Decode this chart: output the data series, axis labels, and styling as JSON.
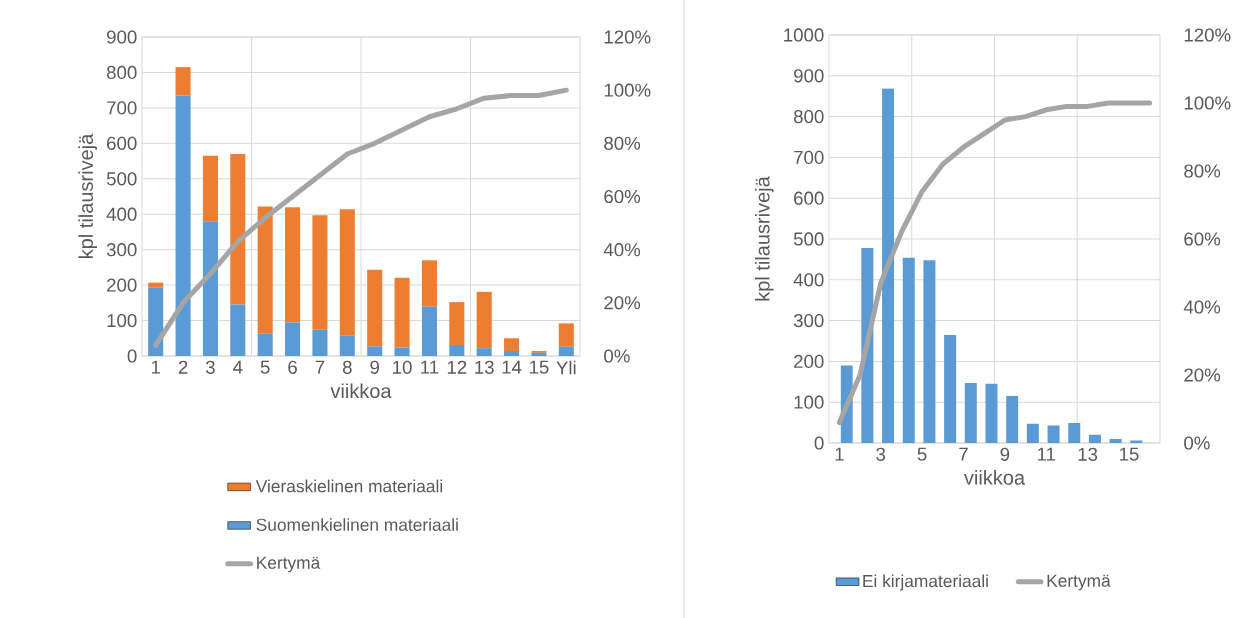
{
  "chart_data": [
    {
      "type": "bar",
      "stacked": true,
      "grid": true,
      "legend": "bottom",
      "categories": [
        "1",
        "2",
        "3",
        "4",
        "5",
        "6",
        "7",
        "8",
        "9",
        "10",
        "11",
        "12",
        "13",
        "14",
        "15",
        "Yli"
      ],
      "xlabel": "viikkoa",
      "ylabel": "kpl tilausrivejä",
      "ylim": [
        0,
        900
      ],
      "yticks": [
        0,
        100,
        200,
        300,
        400,
        500,
        600,
        700,
        800,
        900
      ],
      "y2lim": [
        0,
        120
      ],
      "y2ticks": [
        {
          "value": 0,
          "label": "0%"
        },
        {
          "value": 20,
          "label": "20%"
        },
        {
          "value": 40,
          "label": "40%"
        },
        {
          "value": 60,
          "label": "60%"
        },
        {
          "value": 80,
          "label": "80%"
        },
        {
          "value": 100,
          "label": "100%"
        },
        {
          "value": 120,
          "label": "120%"
        }
      ],
      "series": [
        {
          "name": "Suomenkielinen materiaali",
          "color": "#5b9bd5",
          "values": [
            193,
            735,
            380,
            145,
            63,
            95,
            74,
            58,
            27,
            24,
            139,
            31,
            22,
            14,
            9,
            26
          ]
        },
        {
          "name": "Vieraskielinen materiaali",
          "color": "#ed7d31",
          "values": [
            14,
            80,
            185,
            425,
            359,
            325,
            323,
            356,
            216,
            197,
            131,
            121,
            159,
            36,
            5,
            66
          ]
        },
        {
          "name": "Kertymä",
          "type": "line",
          "axis": "y2",
          "color": "#a5a5a5",
          "values": [
            4,
            20,
            31,
            43,
            52,
            60,
            68,
            76,
            80,
            85,
            90,
            93,
            97,
            98,
            98,
            100
          ]
        }
      ]
    },
    {
      "type": "bar",
      "grid": true,
      "legend": "bottom",
      "categories": [
        "1",
        null,
        "3",
        null,
        "5",
        null,
        "7",
        null,
        "9",
        null,
        "11",
        null,
        "13",
        null,
        "15",
        null
      ],
      "xlabel": "viikkoa",
      "ylabel": "kpl tilausrivejä",
      "ylim": [
        0,
        1000
      ],
      "yticks": [
        0,
        100,
        200,
        300,
        400,
        500,
        600,
        700,
        800,
        900,
        1000
      ],
      "y2lim": [
        0,
        120
      ],
      "y2ticks": [
        {
          "value": 0,
          "label": "0%"
        },
        {
          "value": 20,
          "label": "20%"
        },
        {
          "value": 40,
          "label": "40%"
        },
        {
          "value": 60,
          "label": "60%"
        },
        {
          "value": 80,
          "label": "80%"
        },
        {
          "value": 100,
          "label": "100%"
        },
        {
          "value": 120,
          "label": "120%"
        }
      ],
      "series": [
        {
          "name": "Ei kirjamateriaali",
          "color": "#5b9bd5",
          "values": [
            190,
            478,
            869,
            454,
            448,
            265,
            147,
            145,
            115,
            47,
            43,
            49,
            20,
            10,
            6,
            0
          ]
        },
        {
          "name": "Kertymä",
          "type": "line",
          "axis": "y2",
          "color": "#a5a5a5",
          "values": [
            6,
            20,
            47,
            62,
            74,
            82,
            87,
            91,
            95,
            96,
            98,
            99,
            99,
            100,
            100,
            100
          ]
        }
      ]
    }
  ]
}
